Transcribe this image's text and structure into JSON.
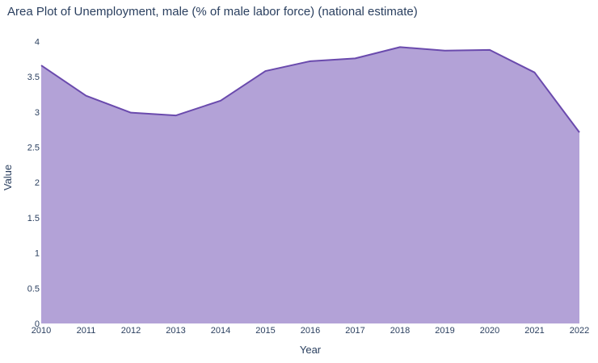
{
  "chart_data": {
    "type": "area",
    "title": "Area Plot of Unemployment, male (% of male labor force) (national estimate)",
    "xlabel": "Year",
    "ylabel": "Value",
    "x": [
      "2010",
      "2011",
      "2012",
      "2013",
      "2014",
      "2015",
      "2016",
      "2017",
      "2018",
      "2019",
      "2020",
      "2021",
      "2022"
    ],
    "y_ticks": [
      "0",
      "0.5",
      "1",
      "1.5",
      "2",
      "2.5",
      "3",
      "3.5",
      "4"
    ],
    "series": [
      {
        "values": [
          3.66,
          3.23,
          2.99,
          2.95,
          3.16,
          3.58,
          3.72,
          3.76,
          3.92,
          3.87,
          3.88,
          3.56,
          2.71
        ]
      }
    ],
    "ylim": [
      0,
      4.05
    ],
    "grid": false,
    "fill_color": "#b3a2d7",
    "line_color": "#6a4aad"
  }
}
